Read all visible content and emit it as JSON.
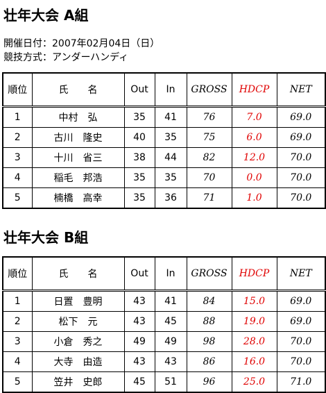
{
  "sections": [
    {
      "title": "壮年大会 A組",
      "info": [
        "開催日付：2007年02月04日（日）",
        "競技方式：アンダーハンディ"
      ],
      "table": {
        "header": [
          "順位",
          "氏　　名",
          "Out",
          "In",
          "GROSS",
          "HDCP",
          "NET"
        ],
        "rows": [
          [
            "1",
            "中村　弘",
            "35",
            "41",
            "76",
            "7.0",
            "69.0"
          ],
          [
            "2",
            "古川　隆史",
            "40",
            "35",
            "75",
            "6.0",
            "69.0"
          ],
          [
            "3",
            "十川　省三",
            "38",
            "44",
            "82",
            "12.0",
            "70.0"
          ],
          [
            "4",
            "稲毛　邦浩",
            "35",
            "35",
            "70",
            "0.0",
            "70.0"
          ],
          [
            "5",
            "楠橋　高幸",
            "35",
            "36",
            "71",
            "1.0",
            "70.0"
          ]
        ]
      }
    },
    {
      "title": "壮年大会 B組",
      "table": {
        "header": [
          "順位",
          "氏　　名",
          "Out",
          "In",
          "GROSS",
          "HDCP",
          "NET"
        ],
        "rows": [
          [
            "1",
            "日置　豊明",
            "43",
            "41",
            "84",
            "15.0",
            "69.0"
          ],
          [
            "2",
            "松下　元",
            "43",
            "45",
            "88",
            "19.0",
            "69.0"
          ],
          [
            "3",
            "小倉　秀之",
            "49",
            "49",
            "98",
            "28.0",
            "70.0"
          ],
          [
            "4",
            "大寺　由造",
            "43",
            "43",
            "86",
            "16.0",
            "70.0"
          ],
          [
            "5",
            "笠井　史郎",
            "45",
            "51",
            "96",
            "25.0",
            "71.0"
          ]
        ]
      }
    }
  ]
}
